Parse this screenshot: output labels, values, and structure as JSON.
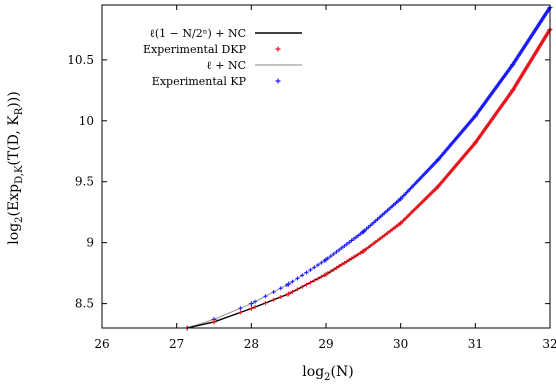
{
  "chart_data": {
    "type": "line",
    "xlabel": "log2(N)",
    "ylabel": "log2(Exp_{D,K}(T(D, K_R)))",
    "xlabel_parts": {
      "base": "log",
      "sub": "2",
      "rest": "(N)"
    },
    "ylabel_parts": {
      "base": "log",
      "sub": "2",
      "rest": "(Exp",
      "sub2": "D,K",
      "rest2": "(T(D, K",
      "sub3": "R",
      "rest3": ")))"
    },
    "xlim": [
      26,
      32
    ],
    "ylim": [
      8.3,
      10.95
    ],
    "xticks": [
      26,
      27,
      28,
      29,
      30,
      31,
      32
    ],
    "yticks": [
      8.5,
      9,
      9.5,
      10,
      10.5
    ],
    "grid": false,
    "legend_position": "top-right",
    "series": [
      {
        "name": "ℓ(1 − N/2ⁿ) + NC",
        "style": "line",
        "color": "#000000",
        "x": [
          27.14,
          27.5,
          28.0,
          28.5,
          29.0,
          29.5,
          30.0,
          30.5,
          31.0,
          31.5,
          32.0
        ],
        "y": [
          8.3,
          8.35,
          8.46,
          8.58,
          8.74,
          8.93,
          9.16,
          9.46,
          9.82,
          10.25,
          10.75
        ]
      },
      {
        "name": "Experimental DKP",
        "style": "points",
        "marker": "+",
        "color": "#e8141c",
        "x": [
          27.14,
          27.5,
          28.0,
          28.5,
          29.0,
          29.5,
          30.0,
          30.5,
          31.0,
          31.5,
          32.0
        ],
        "y": [
          8.3,
          8.35,
          8.46,
          8.58,
          8.74,
          8.93,
          9.16,
          9.46,
          9.82,
          10.25,
          10.75
        ]
      },
      {
        "name": "ℓ + NC",
        "style": "line",
        "color": "#a0a0a0",
        "x": [
          27.14,
          27.5,
          28.0,
          28.5,
          29.0,
          29.5,
          30.0,
          30.5,
          31.0,
          31.5,
          32.0
        ],
        "y": [
          8.3,
          8.37,
          8.5,
          8.66,
          8.86,
          9.09,
          9.36,
          9.68,
          10.04,
          10.46,
          10.93
        ]
      },
      {
        "name": "Experimental KP",
        "style": "points",
        "marker": "+",
        "color": "#1a1aff",
        "x": [
          27.14,
          27.5,
          28.0,
          28.5,
          29.0,
          29.5,
          30.0,
          30.5,
          31.0,
          31.5,
          32.0
        ],
        "y": [
          8.3,
          8.37,
          8.5,
          8.66,
          8.86,
          9.09,
          9.36,
          9.68,
          10.04,
          10.46,
          10.93
        ]
      }
    ]
  }
}
